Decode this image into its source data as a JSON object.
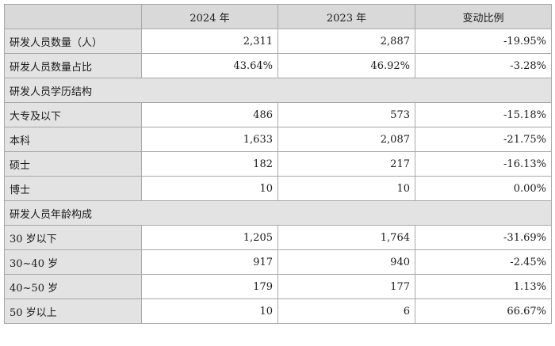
{
  "table": {
    "header": [
      "",
      "2024 年",
      "2023 年",
      "变动比例"
    ],
    "rows": [
      {
        "type": "data",
        "label": "研发人员数量（人）",
        "v2024": "2,311",
        "v2023": "2,887",
        "change": "-19.95%"
      },
      {
        "type": "data",
        "label": "研发人员数量占比",
        "v2024": "43.64%",
        "v2023": "46.92%",
        "change": "-3.28%"
      },
      {
        "type": "section",
        "label": "研发人员学历结构"
      },
      {
        "type": "data",
        "label": "大专及以下",
        "v2024": "486",
        "v2023": "573",
        "change": "-15.18%"
      },
      {
        "type": "data",
        "label": "本科",
        "v2024": "1,633",
        "v2023": "2,087",
        "change": "-21.75%"
      },
      {
        "type": "data",
        "label": "硕士",
        "v2024": "182",
        "v2023": "217",
        "change": "-16.13%"
      },
      {
        "type": "data",
        "label": "博士",
        "v2024": "10",
        "v2023": "10",
        "change": "0.00%"
      },
      {
        "type": "section",
        "label": "研发人员年龄构成"
      },
      {
        "type": "data",
        "label": "30 岁以下",
        "v2024": "1,205",
        "v2023": "1,764",
        "change": "-31.69%"
      },
      {
        "type": "data",
        "label": "30~40 岁",
        "v2024": "917",
        "v2023": "940",
        "change": "-2.45%"
      },
      {
        "type": "data",
        "label": "40~50 岁",
        "v2024": "179",
        "v2023": "177",
        "change": "1.13%"
      },
      {
        "type": "data",
        "label": "50 岁以上",
        "v2024": "10",
        "v2023": "6",
        "change": "66.67%"
      }
    ]
  }
}
